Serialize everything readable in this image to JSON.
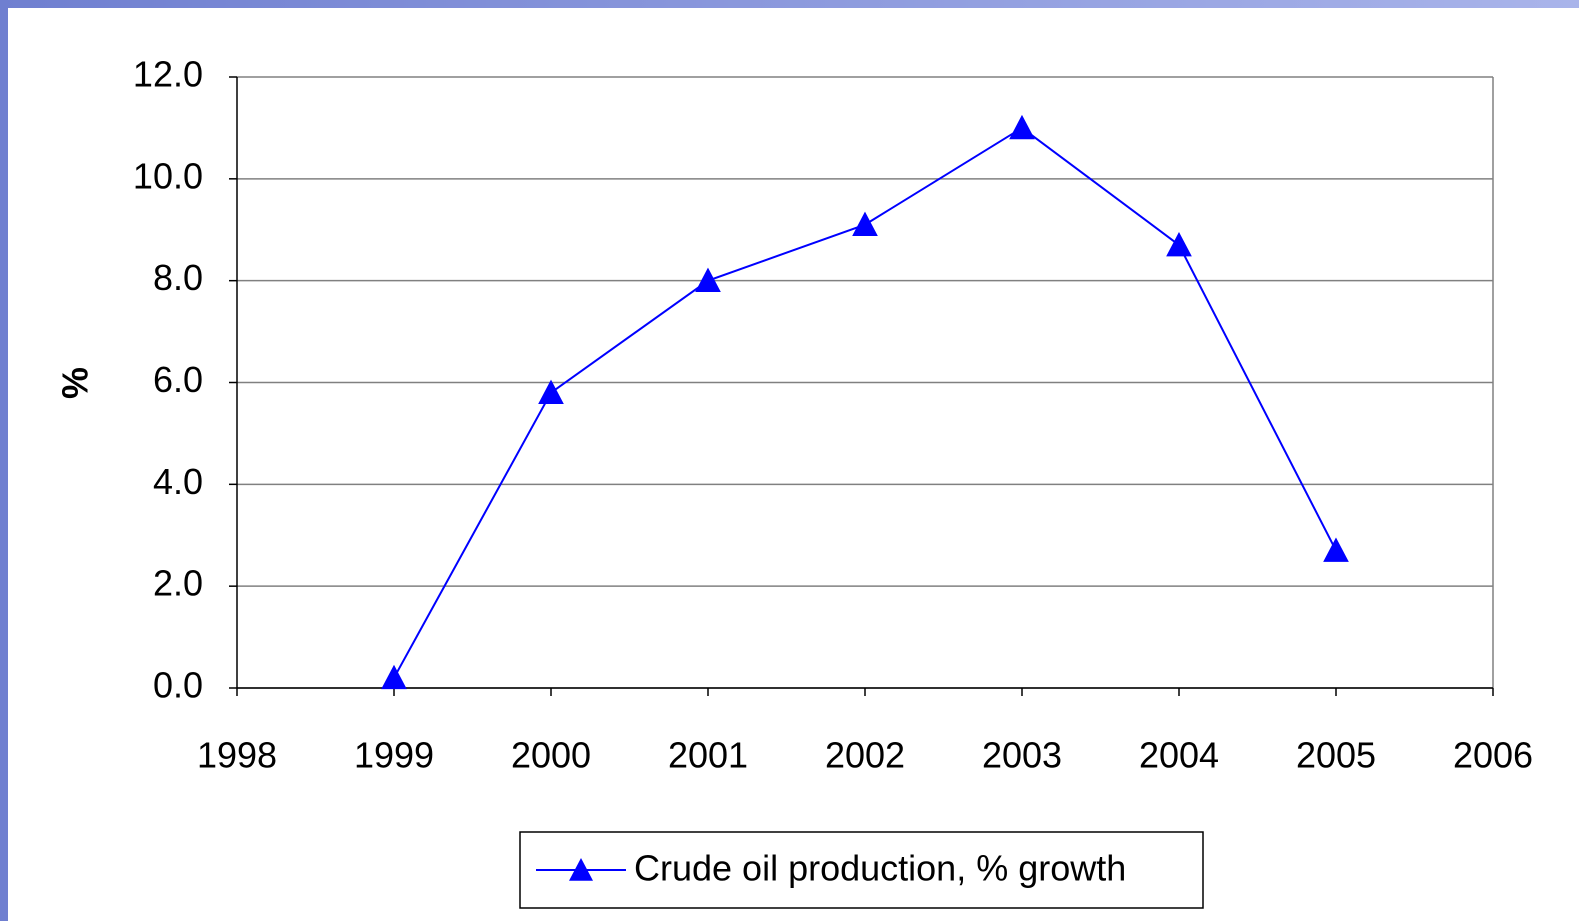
{
  "chart_data": {
    "type": "line",
    "ylabel": "%",
    "x": [
      1999,
      2000,
      2001,
      2002,
      2003,
      2004,
      2005
    ],
    "series": [
      {
        "name": "Crude oil production, % growth",
        "color": "#0000ff",
        "values": [
          0.2,
          5.8,
          8.0,
          9.1,
          11.0,
          8.7,
          2.7
        ]
      }
    ],
    "xlim": [
      1998,
      2006
    ],
    "xticks": [
      1998,
      1999,
      2000,
      2001,
      2002,
      2003,
      2004,
      2005,
      2006
    ],
    "ylim": [
      0,
      12
    ],
    "yticks": [
      {
        "value": 0,
        "label": "0.0"
      },
      {
        "value": 2,
        "label": "2.0"
      },
      {
        "value": 4,
        "label": "4.0"
      },
      {
        "value": 6,
        "label": "6.0"
      },
      {
        "value": 8,
        "label": "8.0"
      },
      {
        "value": 10,
        "label": "10.0"
      },
      {
        "value": 12,
        "label": "12.0"
      }
    ],
    "grid": true,
    "legend": "bottom"
  }
}
